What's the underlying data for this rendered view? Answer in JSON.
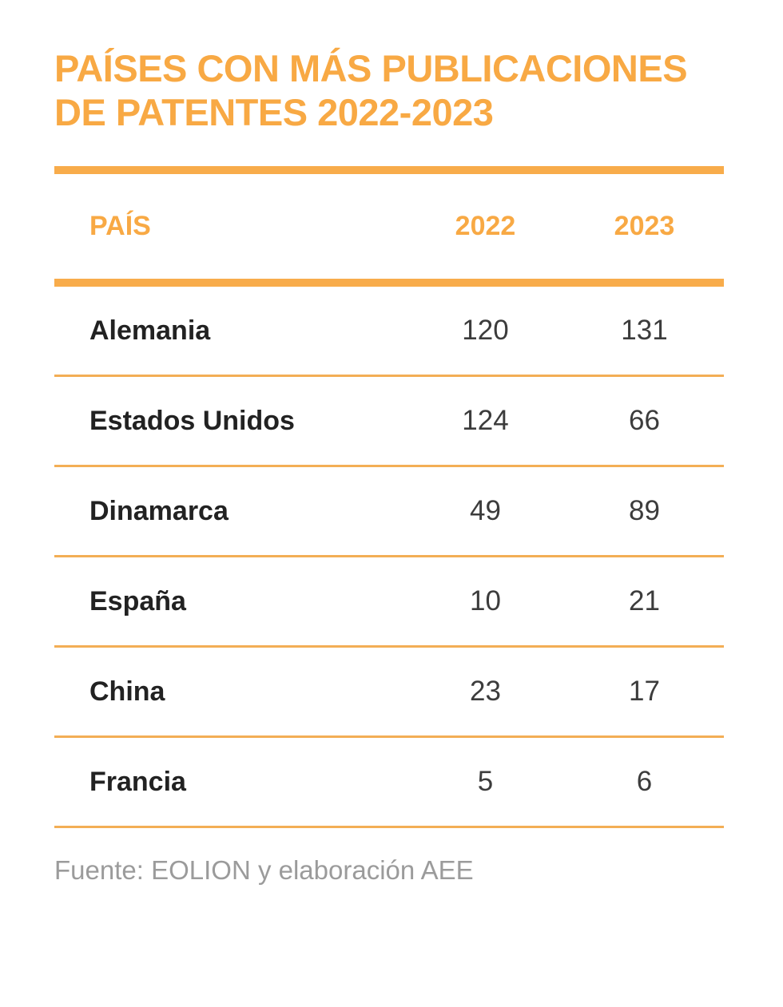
{
  "title": {
    "line1": "PAÍSES CON MÁS PUBLICACIONES",
    "line2": "DE PATENTES 2022-2023"
  },
  "chart_data": {
    "type": "table",
    "title": "PAÍSES CON MÁS PUBLICACIONES DE PATENTES 2022-2023",
    "columns": [
      "PAÍS",
      "2022",
      "2023"
    ],
    "categories": [
      "Alemania",
      "Estados Unidos",
      "Dinamarca",
      "España",
      "China",
      "Francia"
    ],
    "series": [
      {
        "name": "2022",
        "values": [
          120,
          124,
          49,
          10,
          23,
          5
        ]
      },
      {
        "name": "2023",
        "values": [
          131,
          66,
          89,
          21,
          17,
          6
        ]
      }
    ],
    "source": "Fuente: EOLION y elaboración AEE"
  },
  "table": {
    "headers": [
      "PAÍS",
      "2022",
      "2023"
    ],
    "rows": [
      {
        "country": "Alemania",
        "y2022": "120",
        "y2023": "131"
      },
      {
        "country": "Estados Unidos",
        "y2022": "124",
        "y2023": "66"
      },
      {
        "country": "Dinamarca",
        "y2022": "49",
        "y2023": "89"
      },
      {
        "country": "España",
        "y2022": "10",
        "y2023": "21"
      },
      {
        "country": "China",
        "y2022": "23",
        "y2023": "17"
      },
      {
        "country": "Francia",
        "y2022": "5",
        "y2023": "6"
      }
    ]
  },
  "footer": {
    "source": "Fuente: EOLION y elaboración AEE"
  },
  "colors": {
    "accent": "#F8A944",
    "rule_thick": "#F8AC4B",
    "rule_thin": "#F3AE55",
    "country_text": "#222222",
    "number_text": "#3C3C3C",
    "footer_text": "#9B9B9B",
    "background": "#FFFFFF"
  }
}
